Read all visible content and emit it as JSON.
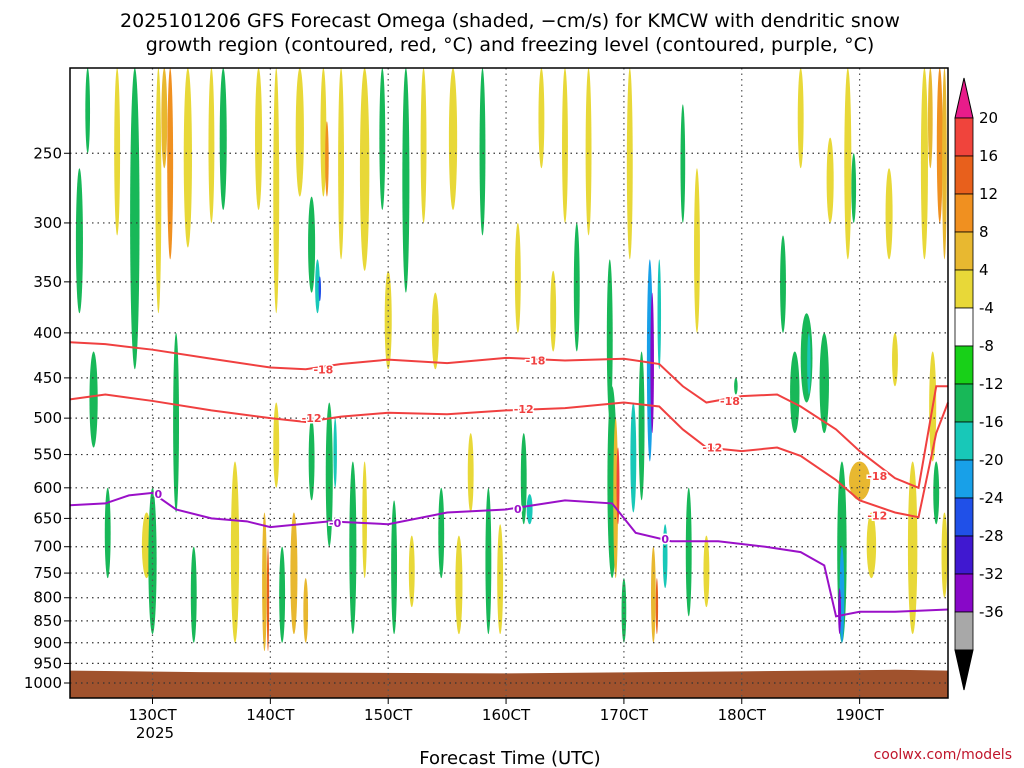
{
  "chart_data": {
    "type": "heatmap",
    "title": "2025101206 GFS Forecast Omega (shaded, −cm/s) for KMCW with dendritic snow",
    "subtitle": "growth region (contoured, red, °C) and freezing level (contoured, purple, °C)",
    "xlabel": "Forecast Time (UTC)",
    "ylabel": "",
    "credit": "coolwx.com/models",
    "x_ticks": [
      "130CT",
      "140CT",
      "150CT",
      "160CT",
      "170CT",
      "180CT",
      "190CT"
    ],
    "x_tick_values": [
      13,
      14,
      15,
      16,
      17,
      18,
      19
    ],
    "x_year_label": "2025",
    "xlim": [
      12.3,
      19.75
    ],
    "y_ticks": [
      250,
      300,
      350,
      400,
      450,
      500,
      550,
      600,
      650,
      700,
      750,
      800,
      850,
      900,
      950,
      1000
    ],
    "ylim": [
      200,
      1040
    ],
    "y_scale": "log-pressure",
    "colorbar": {
      "levels": [
        "20",
        "16",
        "12",
        "8",
        "4",
        "-4",
        "-8",
        "-12",
        "-16",
        "-20",
        "-24",
        "-28",
        "-32",
        "-36"
      ],
      "colors": [
        "#e81c8a",
        "#f0443c",
        "#e8601c",
        "#f09020",
        "#e8b830",
        "#e8d838",
        "#ffffff",
        "#18d018",
        "#18b858",
        "#18c8b8",
        "#18a0e8",
        "#2050e8",
        "#4018d0",
        "#8808c8",
        "#a8a8a8",
        "#000000"
      ]
    },
    "contours": [
      {
        "name": "-18",
        "color": "#f04040",
        "x": [
          12.3,
          12.6,
          13.0,
          13.5,
          14.0,
          14.3,
          14.6,
          15.0,
          15.5,
          16.0,
          16.5,
          17.0,
          17.3,
          17.5,
          17.7,
          18.0,
          18.3,
          18.5,
          18.8,
          19.0,
          19.3,
          19.5,
          19.65,
          19.75
        ],
        "y": [
          410,
          412,
          418,
          428,
          438,
          440,
          434,
          429,
          433,
          427,
          430,
          428,
          434,
          460,
          480,
          472,
          470,
          485,
          515,
          545,
          585,
          600,
          460,
          460
        ]
      },
      {
        "name": "-12",
        "color": "#f04040",
        "x": [
          12.3,
          12.6,
          13.0,
          13.5,
          14.0,
          14.3,
          14.6,
          15.0,
          15.5,
          16.0,
          16.5,
          17.0,
          17.3,
          17.5,
          17.7,
          18.0,
          18.3,
          18.5,
          18.8,
          19.0,
          19.3,
          19.5,
          19.65,
          19.75
        ],
        "y": [
          476,
          470,
          478,
          490,
          500,
          505,
          498,
          493,
          495,
          490,
          487,
          480,
          485,
          515,
          540,
          545,
          540,
          552,
          588,
          620,
          640,
          648,
          520,
          480
        ]
      },
      {
        "name": "0",
        "color": "#9a10c8",
        "x": [
          12.3,
          12.6,
          12.8,
          13.0,
          13.2,
          13.5,
          13.8,
          14.0,
          14.5,
          15.0,
          15.5,
          16.0,
          16.5,
          16.9,
          17.1,
          17.4,
          17.8,
          18.2,
          18.5,
          18.7,
          18.8,
          19.0,
          19.3,
          19.75
        ],
        "y": [
          628,
          625,
          612,
          608,
          635,
          650,
          655,
          665,
          655,
          660,
          640,
          635,
          620,
          625,
          675,
          690,
          690,
          700,
          710,
          735,
          840,
          830,
          830,
          825
        ]
      }
    ],
    "contour_labels": [
      {
        "text": "-18",
        "x": 14.45,
        "y": 440
      },
      {
        "text": "-18",
        "x": 16.25,
        "y": 430
      },
      {
        "text": "-18",
        "x": 17.9,
        "y": 478
      },
      {
        "text": "-18",
        "x": 19.15,
        "y": 582
      },
      {
        "text": "-12",
        "x": 14.35,
        "y": 500
      },
      {
        "text": "-12",
        "x": 16.15,
        "y": 488
      },
      {
        "text": "-12",
        "x": 17.75,
        "y": 540
      },
      {
        "text": "-12",
        "x": 19.15,
        "y": 645
      },
      {
        "text": "0",
        "x": 13.05,
        "y": 610
      },
      {
        "text": "-0",
        "x": 14.55,
        "y": 658
      },
      {
        "text": "0",
        "x": 16.1,
        "y": 634
      },
      {
        "text": "0",
        "x": 17.35,
        "y": 686
      }
    ],
    "omega_blobs": [
      {
        "x": 12.38,
        "y0": 260,
        "y1": 380,
        "w": 0.06,
        "level": "-8"
      },
      {
        "x": 12.45,
        "y0": 200,
        "y1": 250,
        "w": 0.04,
        "level": "-8"
      },
      {
        "x": 12.5,
        "y0": 420,
        "y1": 540,
        "w": 0.07,
        "level": "-8"
      },
      {
        "x": 12.7,
        "y0": 200,
        "y1": 310,
        "w": 0.05,
        "level": "4"
      },
      {
        "x": 12.62,
        "y0": 600,
        "y1": 760,
        "w": 0.05,
        "level": "-8"
      },
      {
        "x": 12.85,
        "y0": 200,
        "y1": 440,
        "w": 0.08,
        "level": "-8"
      },
      {
        "x": 12.95,
        "y0": 640,
        "y1": 760,
        "w": 0.08,
        "level": "4"
      },
      {
        "x": 13.05,
        "y0": 200,
        "y1": 380,
        "w": 0.05,
        "level": "4"
      },
      {
        "x": 13.0,
        "y0": 600,
        "y1": 880,
        "w": 0.07,
        "level": "-8"
      },
      {
        "x": 13.1,
        "y0": 200,
        "y1": 260,
        "w": 0.05,
        "level": "8"
      },
      {
        "x": 13.15,
        "y0": 200,
        "y1": 330,
        "w": 0.05,
        "level": "12"
      },
      {
        "x": 13.2,
        "y0": 400,
        "y1": 640,
        "w": 0.05,
        "level": "-8"
      },
      {
        "x": 13.3,
        "y0": 200,
        "y1": 320,
        "w": 0.07,
        "level": "4"
      },
      {
        "x": 13.35,
        "y0": 700,
        "y1": 900,
        "w": 0.05,
        "level": "-8"
      },
      {
        "x": 13.5,
        "y0": 200,
        "y1": 300,
        "w": 0.05,
        "level": "4"
      },
      {
        "x": 13.6,
        "y0": 200,
        "y1": 290,
        "w": 0.06,
        "level": "-8"
      },
      {
        "x": 13.7,
        "y0": 560,
        "y1": 900,
        "w": 0.07,
        "level": "4"
      },
      {
        "x": 13.9,
        "y0": 200,
        "y1": 290,
        "w": 0.06,
        "level": "4"
      },
      {
        "x": 13.95,
        "y0": 640,
        "y1": 920,
        "w": 0.04,
        "level": "8"
      },
      {
        "x": 13.98,
        "y0": 700,
        "y1": 920,
        "w": 0.02,
        "level": "16"
      },
      {
        "x": 14.05,
        "y0": 200,
        "y1": 380,
        "w": 0.05,
        "level": "4"
      },
      {
        "x": 14.05,
        "y0": 480,
        "y1": 600,
        "w": 0.05,
        "level": "4"
      },
      {
        "x": 14.1,
        "y0": 700,
        "y1": 900,
        "w": 0.05,
        "level": "-8"
      },
      {
        "x": 14.2,
        "y0": 640,
        "y1": 880,
        "w": 0.06,
        "level": "8"
      },
      {
        "x": 14.25,
        "y0": 200,
        "y1": 280,
        "w": 0.07,
        "level": "4"
      },
      {
        "x": 14.3,
        "y0": 760,
        "y1": 900,
        "w": 0.04,
        "level": "8"
      },
      {
        "x": 14.35,
        "y0": 280,
        "y1": 360,
        "w": 0.06,
        "level": "-8"
      },
      {
        "x": 14.35,
        "y0": 500,
        "y1": 620,
        "w": 0.05,
        "level": "-8"
      },
      {
        "x": 14.4,
        "y0": 330,
        "y1": 380,
        "w": 0.04,
        "level": "-12"
      },
      {
        "x": 14.42,
        "y0": 345,
        "y1": 368,
        "w": 0.02,
        "level": "-20"
      },
      {
        "x": 14.45,
        "y0": 200,
        "y1": 280,
        "w": 0.05,
        "level": "4"
      },
      {
        "x": 14.48,
        "y0": 230,
        "y1": 280,
        "w": 0.03,
        "level": "12"
      },
      {
        "x": 14.5,
        "y0": 480,
        "y1": 700,
        "w": 0.06,
        "level": "-8"
      },
      {
        "x": 14.55,
        "y0": 500,
        "y1": 600,
        "w": 0.03,
        "level": "-12"
      },
      {
        "x": 14.6,
        "y0": 200,
        "y1": 330,
        "w": 0.05,
        "level": "4"
      },
      {
        "x": 14.7,
        "y0": 560,
        "y1": 880,
        "w": 0.06,
        "level": "-8"
      },
      {
        "x": 14.8,
        "y0": 200,
        "y1": 340,
        "w": 0.08,
        "level": "4"
      },
      {
        "x": 14.8,
        "y0": 560,
        "y1": 760,
        "w": 0.04,
        "level": "4"
      },
      {
        "x": 14.95,
        "y0": 200,
        "y1": 290,
        "w": 0.05,
        "level": "-8"
      },
      {
        "x": 15.0,
        "y0": 340,
        "y1": 440,
        "w": 0.06,
        "level": "4"
      },
      {
        "x": 15.05,
        "y0": 620,
        "y1": 880,
        "w": 0.05,
        "level": "-8"
      },
      {
        "x": 15.15,
        "y0": 200,
        "y1": 360,
        "w": 0.06,
        "level": "-8"
      },
      {
        "x": 15.2,
        "y0": 680,
        "y1": 820,
        "w": 0.05,
        "level": "4"
      },
      {
        "x": 15.3,
        "y0": 200,
        "y1": 300,
        "w": 0.05,
        "level": "4"
      },
      {
        "x": 15.4,
        "y0": 360,
        "y1": 440,
        "w": 0.06,
        "level": "4"
      },
      {
        "x": 15.45,
        "y0": 600,
        "y1": 760,
        "w": 0.05,
        "level": "-8"
      },
      {
        "x": 15.55,
        "y0": 200,
        "y1": 290,
        "w": 0.07,
        "level": "4"
      },
      {
        "x": 15.6,
        "y0": 680,
        "y1": 880,
        "w": 0.06,
        "level": "4"
      },
      {
        "x": 15.7,
        "y0": 520,
        "y1": 640,
        "w": 0.05,
        "level": "4"
      },
      {
        "x": 15.8,
        "y0": 200,
        "y1": 310,
        "w": 0.05,
        "level": "-8"
      },
      {
        "x": 15.85,
        "y0": 600,
        "y1": 880,
        "w": 0.05,
        "level": "-8"
      },
      {
        "x": 15.95,
        "y0": 660,
        "y1": 880,
        "w": 0.05,
        "level": "4"
      },
      {
        "x": 16.1,
        "y0": 300,
        "y1": 400,
        "w": 0.05,
        "level": "4"
      },
      {
        "x": 16.15,
        "y0": 520,
        "y1": 660,
        "w": 0.05,
        "level": "-8"
      },
      {
        "x": 16.2,
        "y0": 610,
        "y1": 660,
        "w": 0.05,
        "level": "-12"
      },
      {
        "x": 16.3,
        "y0": 200,
        "y1": 260,
        "w": 0.05,
        "level": "4"
      },
      {
        "x": 16.4,
        "y0": 340,
        "y1": 420,
        "w": 0.05,
        "level": "4"
      },
      {
        "x": 16.5,
        "y0": 200,
        "y1": 300,
        "w": 0.05,
        "level": "4"
      },
      {
        "x": 16.6,
        "y0": 300,
        "y1": 420,
        "w": 0.05,
        "level": "-8"
      },
      {
        "x": 16.7,
        "y0": 200,
        "y1": 310,
        "w": 0.05,
        "level": "4"
      },
      {
        "x": 16.88,
        "y0": 330,
        "y1": 500,
        "w": 0.05,
        "level": "-8"
      },
      {
        "x": 16.9,
        "y0": 460,
        "y1": 760,
        "w": 0.08,
        "level": "-8"
      },
      {
        "x": 16.93,
        "y0": 500,
        "y1": 760,
        "w": 0.04,
        "level": "8"
      },
      {
        "x": 16.95,
        "y0": 540,
        "y1": 660,
        "w": 0.025,
        "level": "20"
      },
      {
        "x": 17.0,
        "y0": 760,
        "y1": 900,
        "w": 0.04,
        "level": "-8"
      },
      {
        "x": 17.05,
        "y0": 200,
        "y1": 330,
        "w": 0.05,
        "level": "4"
      },
      {
        "x": 17.08,
        "y0": 480,
        "y1": 640,
        "w": 0.05,
        "level": "-12"
      },
      {
        "x": 17.15,
        "y0": 420,
        "y1": 620,
        "w": 0.05,
        "level": "-8"
      },
      {
        "x": 17.22,
        "y0": 330,
        "y1": 560,
        "w": 0.05,
        "level": "-16"
      },
      {
        "x": 17.24,
        "y0": 360,
        "y1": 520,
        "w": 0.03,
        "level": "-28"
      },
      {
        "x": 17.3,
        "y0": 330,
        "y1": 440,
        "w": 0.03,
        "level": "-12"
      },
      {
        "x": 17.25,
        "y0": 700,
        "y1": 900,
        "w": 0.04,
        "level": "8"
      },
      {
        "x": 17.28,
        "y0": 760,
        "y1": 880,
        "w": 0.02,
        "level": "16"
      },
      {
        "x": 17.35,
        "y0": 660,
        "y1": 780,
        "w": 0.04,
        "level": "-12"
      },
      {
        "x": 17.5,
        "y0": 220,
        "y1": 300,
        "w": 0.04,
        "level": "-8"
      },
      {
        "x": 17.55,
        "y0": 600,
        "y1": 840,
        "w": 0.05,
        "level": "-8"
      },
      {
        "x": 17.62,
        "y0": 260,
        "y1": 400,
        "w": 0.05,
        "level": "4"
      },
      {
        "x": 17.7,
        "y0": 680,
        "y1": 820,
        "w": 0.05,
        "level": "4"
      },
      {
        "x": 17.95,
        "y0": 450,
        "y1": 470,
        "w": 0.03,
        "level": "-8"
      },
      {
        "x": 18.35,
        "y0": 310,
        "y1": 400,
        "w": 0.05,
        "level": "-8"
      },
      {
        "x": 18.5,
        "y0": 200,
        "y1": 260,
        "w": 0.05,
        "level": "4"
      },
      {
        "x": 18.45,
        "y0": 420,
        "y1": 520,
        "w": 0.08,
        "level": "-8"
      },
      {
        "x": 18.55,
        "y0": 380,
        "y1": 480,
        "w": 0.1,
        "level": "-8"
      },
      {
        "x": 18.57,
        "y0": 400,
        "y1": 470,
        "w": 0.03,
        "level": "-12"
      },
      {
        "x": 18.7,
        "y0": 400,
        "y1": 520,
        "w": 0.08,
        "level": "-8"
      },
      {
        "x": 18.75,
        "y0": 240,
        "y1": 300,
        "w": 0.06,
        "level": "4"
      },
      {
        "x": 18.85,
        "y0": 560,
        "y1": 900,
        "w": 0.08,
        "level": "-8"
      },
      {
        "x": 18.85,
        "y0": 700,
        "y1": 900,
        "w": 0.04,
        "level": "-16"
      },
      {
        "x": 18.83,
        "y0": 780,
        "y1": 880,
        "w": 0.025,
        "level": "-28"
      },
      {
        "x": 18.9,
        "y0": 200,
        "y1": 330,
        "w": 0.06,
        "level": "4"
      },
      {
        "x": 18.95,
        "y0": 250,
        "y1": 300,
        "w": 0.04,
        "level": "-8"
      },
      {
        "x": 19.0,
        "y0": 560,
        "y1": 620,
        "w": 0.18,
        "level": "8"
      },
      {
        "x": 19.1,
        "y0": 640,
        "y1": 760,
        "w": 0.08,
        "level": "4"
      },
      {
        "x": 19.25,
        "y0": 260,
        "y1": 330,
        "w": 0.06,
        "level": "4"
      },
      {
        "x": 19.3,
        "y0": 400,
        "y1": 460,
        "w": 0.05,
        "level": "4"
      },
      {
        "x": 19.45,
        "y0": 560,
        "y1": 880,
        "w": 0.08,
        "level": "4"
      },
      {
        "x": 19.55,
        "y0": 200,
        "y1": 330,
        "w": 0.06,
        "level": "4"
      },
      {
        "x": 19.6,
        "y0": 200,
        "y1": 260,
        "w": 0.04,
        "level": "8"
      },
      {
        "x": 19.62,
        "y0": 420,
        "y1": 560,
        "w": 0.06,
        "level": "4"
      },
      {
        "x": 19.65,
        "y0": 560,
        "y1": 660,
        "w": 0.05,
        "level": "-8"
      },
      {
        "x": 19.68,
        "y0": 200,
        "y1": 300,
        "w": 0.05,
        "level": "12"
      },
      {
        "x": 19.72,
        "y0": 200,
        "y1": 330,
        "w": 0.04,
        "level": "8"
      },
      {
        "x": 19.72,
        "y0": 640,
        "y1": 800,
        "w": 0.05,
        "level": "4"
      }
    ]
  }
}
